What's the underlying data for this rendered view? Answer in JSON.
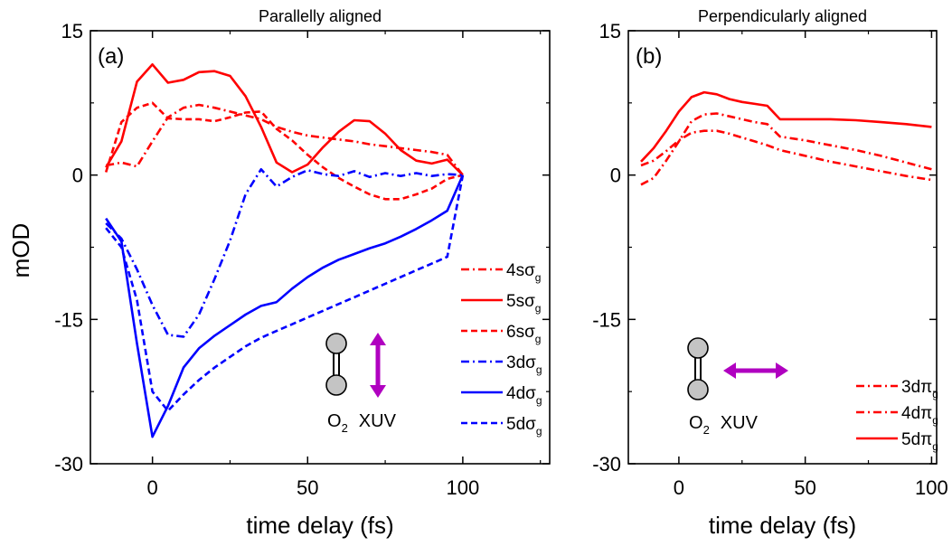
{
  "figure": {
    "ylabel": "mOD",
    "colors": {
      "red": "#ff0000",
      "blue": "#0000ff",
      "purple": "#b000c0",
      "atom_fill": "#c4c4c4"
    }
  },
  "chart_data": [
    {
      "type": "line",
      "panel_label": "(a)",
      "title": "Parallelly aligned",
      "xlabel": "time delay (fs)",
      "ylabel": "mOD",
      "xlim": [
        -20,
        128
      ],
      "ylim": [
        -30,
        15
      ],
      "xticks": [
        0,
        50,
        100
      ],
      "yticks": [
        15,
        0,
        -15,
        -30
      ],
      "ytick_labels": [
        "15",
        "0",
        "-15",
        "-30"
      ],
      "grid": false,
      "legend_position": "right",
      "inset": {
        "molecule": "O",
        "subscript": "2",
        "pulse": "XUV",
        "arrow": "vertical"
      },
      "series": [
        {
          "name": "4sσg",
          "label_main": "4sσ",
          "label_sub": "g",
          "color": "#ff0000",
          "dash": "dashdot",
          "x": [
            -15,
            -10,
            -5,
            0,
            5,
            10,
            15,
            20,
            25,
            30,
            35,
            40,
            45,
            50,
            55,
            60,
            65,
            70,
            75,
            80,
            85,
            90,
            95,
            100
          ],
          "y": [
            1.0,
            1.3,
            0.9,
            3.5,
            6.0,
            7.0,
            7.3,
            7.0,
            6.6,
            6.2,
            5.8,
            5.0,
            4.5,
            4.1,
            3.9,
            3.7,
            3.5,
            3.2,
            3.0,
            2.8,
            2.6,
            2.4,
            2.1,
            0.0
          ]
        },
        {
          "name": "5sσg",
          "label_main": "5sσ",
          "label_sub": "g",
          "color": "#ff0000",
          "dash": "solid",
          "x": [
            -15,
            -10,
            -5,
            0,
            5,
            10,
            15,
            20,
            25,
            30,
            35,
            40,
            45,
            50,
            55,
            60,
            65,
            70,
            75,
            80,
            85,
            90,
            95,
            100
          ],
          "y": [
            0.8,
            3.5,
            9.7,
            11.5,
            9.6,
            9.9,
            10.7,
            10.8,
            10.3,
            8.2,
            5.0,
            1.3,
            0.3,
            1.1,
            2.9,
            4.5,
            5.7,
            5.6,
            4.3,
            2.6,
            1.5,
            1.2,
            1.6,
            0.0
          ]
        },
        {
          "name": "6sσg",
          "label_main": "6sσ",
          "label_sub": "g",
          "color": "#ff0000",
          "dash": "dashed",
          "x": [
            -15,
            -10,
            -5,
            0,
            5,
            10,
            15,
            20,
            25,
            30,
            35,
            40,
            45,
            50,
            55,
            60,
            65,
            70,
            75,
            80,
            85,
            90,
            95,
            100
          ],
          "y": [
            0.3,
            5.5,
            7.0,
            7.5,
            5.9,
            5.8,
            5.8,
            5.6,
            6.0,
            6.5,
            6.6,
            4.8,
            3.6,
            2.1,
            0.8,
            -0.3,
            -1.2,
            -2.0,
            -2.5,
            -2.5,
            -2.0,
            -1.4,
            -0.4,
            0.0
          ]
        },
        {
          "name": "3dσg",
          "label_main": "3dσ",
          "label_sub": "g",
          "color": "#0000ff",
          "dash": "dashdot",
          "x": [
            -15,
            -10,
            -5,
            0,
            5,
            10,
            15,
            20,
            25,
            30,
            35,
            40,
            45,
            50,
            55,
            60,
            65,
            70,
            75,
            80,
            85,
            90,
            95,
            100
          ],
          "y": [
            -5.0,
            -6.6,
            -9.8,
            -13.5,
            -16.6,
            -16.8,
            -14.5,
            -10.8,
            -6.8,
            -2.0,
            0.6,
            -1.2,
            -0.2,
            0.5,
            0.1,
            -0.1,
            0.4,
            -0.2,
            0.2,
            -0.1,
            0.2,
            -0.1,
            0.1,
            0.0
          ]
        },
        {
          "name": "4dσg",
          "label_main": "4dσ",
          "label_sub": "g",
          "color": "#0000ff",
          "dash": "solid",
          "x": [
            -15,
            -10,
            -5,
            0,
            5,
            10,
            15,
            20,
            25,
            30,
            35,
            40,
            45,
            50,
            55,
            60,
            65,
            70,
            75,
            80,
            85,
            90,
            95,
            100
          ],
          "y": [
            -4.5,
            -6.9,
            -17.5,
            -27.2,
            -24.0,
            -20.0,
            -18.0,
            -16.7,
            -15.6,
            -14.5,
            -13.6,
            -13.2,
            -11.8,
            -10.6,
            -9.6,
            -8.8,
            -8.2,
            -7.6,
            -7.1,
            -6.4,
            -5.6,
            -4.7,
            -3.7,
            0.0
          ]
        },
        {
          "name": "5dσg",
          "label_main": "5dσ",
          "label_sub": "g",
          "color": "#0000ff",
          "dash": "dashed",
          "x": [
            -15,
            -10,
            -5,
            0,
            5,
            10,
            15,
            20,
            25,
            30,
            35,
            40,
            45,
            50,
            55,
            60,
            65,
            70,
            75,
            80,
            85,
            90,
            95,
            100
          ],
          "y": [
            -5.5,
            -7.5,
            -13.0,
            -22.5,
            -24.5,
            -22.8,
            -21.3,
            -20.0,
            -18.9,
            -17.8,
            -16.9,
            -16.2,
            -15.5,
            -14.8,
            -14.1,
            -13.4,
            -12.7,
            -12.0,
            -11.3,
            -10.6,
            -9.9,
            -9.2,
            -8.5,
            0.0
          ]
        }
      ]
    },
    {
      "type": "line",
      "panel_label": "(b)",
      "title": "Perpendicularly aligned",
      "xlabel": "time delay (fs)",
      "ylabel": "",
      "xlim": [
        -20,
        102
      ],
      "ylim": [
        -30,
        15
      ],
      "xticks": [
        0,
        50,
        100
      ],
      "yticks": [
        15,
        0,
        -15,
        -30
      ],
      "ytick_labels": [
        "15",
        "0",
        "-15",
        "-30"
      ],
      "grid": false,
      "legend_position": "bottom-right",
      "inset": {
        "molecule": "O",
        "subscript": "2",
        "pulse": "XUV",
        "arrow": "horizontal"
      },
      "series": [
        {
          "name": "3dπg",
          "label_main": "3dπ",
          "label_sub": "g",
          "color": "#ff0000",
          "dash": "dashdot",
          "x": [
            -15,
            -10,
            -5,
            0,
            5,
            10,
            15,
            20,
            25,
            30,
            35,
            40,
            50,
            60,
            70,
            80,
            90,
            100
          ],
          "y": [
            1.0,
            1.5,
            2.5,
            3.6,
            4.4,
            4.6,
            4.6,
            4.3,
            3.9,
            3.5,
            3.1,
            2.6,
            2.0,
            1.4,
            0.9,
            0.4,
            -0.1,
            -0.5
          ]
        },
        {
          "name": "4dπg",
          "label_main": "4dπ",
          "label_sub": "g",
          "color": "#ff0000",
          "dash": "dashdot",
          "x": [
            -15,
            -10,
            -5,
            0,
            5,
            10,
            15,
            20,
            25,
            30,
            35,
            40,
            50,
            60,
            70,
            80,
            90,
            100
          ],
          "y": [
            -1.0,
            -0.3,
            1.5,
            3.5,
            5.6,
            6.3,
            6.4,
            6.1,
            5.8,
            5.5,
            5.3,
            4.0,
            3.6,
            3.1,
            2.6,
            2.0,
            1.3,
            0.6
          ]
        },
        {
          "name": "5dπg",
          "label_main": "5dπ",
          "label_sub": "g",
          "color": "#ff0000",
          "dash": "solid",
          "x": [
            -15,
            -10,
            -5,
            0,
            5,
            10,
            15,
            20,
            25,
            30,
            35,
            40,
            50,
            60,
            70,
            80,
            90,
            100
          ],
          "y": [
            1.4,
            2.8,
            4.6,
            6.6,
            8.1,
            8.6,
            8.4,
            7.9,
            7.6,
            7.4,
            7.2,
            5.8,
            5.8,
            5.8,
            5.7,
            5.5,
            5.3,
            5.0
          ]
        }
      ]
    }
  ]
}
